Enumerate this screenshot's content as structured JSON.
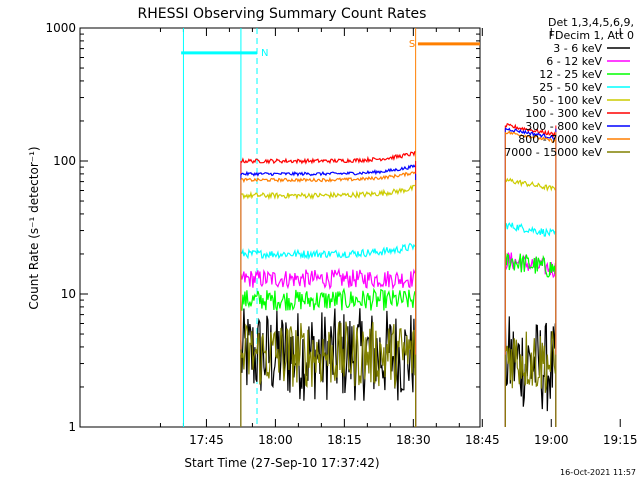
{
  "chart_data": {
    "type": "line",
    "title": "RHESSI Observing Summary Count Rates",
    "xlabel": "Start Time (27-Sep-10 17:37:42)",
    "ylabel": "Count Rate (s⁻¹ detector⁻¹)",
    "ylog": true,
    "ylim": [
      1,
      1000
    ],
    "y_ticks": [
      "1",
      "10",
      "100",
      "1000"
    ],
    "xlim_minutes": [
      17.5,
      104.5
    ],
    "x_ticks": [
      {
        "label": "17:45",
        "minute": 45
      },
      {
        "label": "18:00",
        "minute": 60
      },
      {
        "label": "18:15",
        "minute": 75
      },
      {
        "label": "18:30",
        "minute": 90
      },
      {
        "label": "18:45",
        "minute": 105
      },
      {
        "label": "19:00",
        "minute": 120
      },
      {
        "label": "19:15",
        "minute": 135
      }
    ],
    "legend_header": [
      "Det 1,3,4,5,6,9,",
      "FDecim 1, Att 0"
    ],
    "legend_placement": "outside-right",
    "timestamp": "16-Oct-2021 11:57",
    "flags": [
      {
        "label": "N",
        "color": "#00ffff",
        "label_color": "#00ffff",
        "solid_start": 39.5,
        "solid_end": 56.0,
        "dashed_at": 56.0,
        "level": 650
      },
      {
        "label": "S",
        "color": "#ff7f00",
        "label_color": "#ff7f00",
        "solid_start": 91.0,
        "solid_end": 107.0,
        "dashed_at": 107.0,
        "level": 760
      },
      {
        "label": "",
        "color": "#00ffff",
        "label_color": "#00ffff",
        "solid_start": 127.5,
        "solid_end": 136.0,
        "dashed_at": 136.0,
        "level": 650
      }
    ],
    "vlines": [
      {
        "minute": 40.0,
        "color": "#00ffff",
        "style": "solid"
      },
      {
        "minute": 52.5,
        "color": "#00ffff",
        "style": "solid"
      },
      {
        "minute": 90.5,
        "color": "#ff7f00",
        "style": "solid"
      },
      {
        "minute": 119.0,
        "color": "#00ffff",
        "style": "solid"
      }
    ],
    "segments": [
      {
        "start": 52.5,
        "end": 90.5
      },
      {
        "start": 110.0,
        "end": 121.0
      }
    ],
    "series": [
      {
        "name": "3 - 6 keV",
        "color": "#000000",
        "values": [
          3.5,
          3.2
        ],
        "noise": 0.35
      },
      {
        "name": "6 - 12 keV",
        "color": "#ff00ff",
        "values": [
          13,
          18
        ],
        "noise": 0.07
      },
      {
        "name": "12 - 25 keV",
        "color": "#00ff00",
        "values": [
          9,
          18
        ],
        "noise": 0.08
      },
      {
        "name": "25 - 50 keV",
        "color": "#00ffff",
        "values": [
          20,
          33
        ],
        "noise": 0.03
      },
      {
        "name": "50 - 100 keV",
        "color": "#cccc00",
        "values": [
          55,
          72
        ],
        "noise": 0.02
      },
      {
        "name": "100 - 300 keV",
        "color": "#ff0000",
        "values": [
          100,
          185
        ],
        "noise": 0.015
      },
      {
        "name": "300 - 800 keV",
        "color": "#0000ff",
        "values": [
          80,
          175
        ],
        "noise": 0.012
      },
      {
        "name": "800 - 7000 keV",
        "color": "#ff7f00",
        "values": [
          72,
          165
        ],
        "noise": 0.012
      },
      {
        "name": "7000 - 15000 keV",
        "color": "#808000",
        "values": [
          3.5,
          3.5
        ],
        "noise": 0.25
      }
    ]
  }
}
